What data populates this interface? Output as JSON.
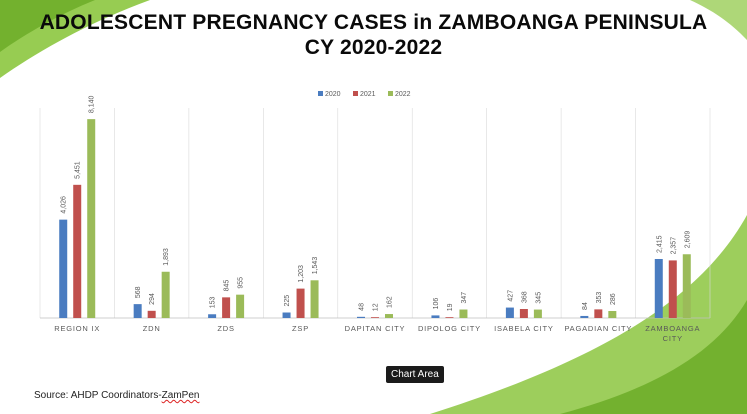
{
  "header": {
    "title_line1": "ADOLESCENT PREGNANCY CASES in ZAMBOANGA PENINSULA",
    "title_line2": "CY 2020-2022"
  },
  "tooltip": "Chart Area",
  "source": {
    "prefix": "Source: AHDP Coordinators-",
    "squiggle": "ZamPen"
  },
  "colors": {
    "series_2020": "#4a7cc0",
    "series_2021": "#c0504d",
    "series_2022": "#9bbb59",
    "grid": "#d9d9d9",
    "background_swoosh": "#8cc63f"
  },
  "chart_data": {
    "type": "bar",
    "title": "ADOLESCENT PREGNANCY CASES in ZAMBOANGA PENINSULA CY 2020-2022",
    "legend_position": "top",
    "ylim": [
      0,
      8800
    ],
    "categories": [
      "REGION IX",
      "ZDN",
      "ZDS",
      "ZSP",
      "DAPITAN CITY",
      "DIPOLOG CITY",
      "ISABELA CITY",
      "PAGADIAN CITY",
      "ZAMBOANGA CITY"
    ],
    "series": [
      {
        "name": "2020",
        "values": [
          4026,
          568,
          153,
          225,
          48,
          106,
          427,
          84,
          2415
        ],
        "labels": [
          "4,026",
          "568",
          "153",
          "225",
          "48",
          "106",
          "427",
          "84",
          "2,415"
        ]
      },
      {
        "name": "2021",
        "values": [
          5451,
          294,
          845,
          1203,
          12,
          19,
          368,
          353,
          2357
        ],
        "labels": [
          "5,451",
          "294",
          "845",
          "1,203",
          "12",
          "19",
          "368",
          "353",
          "2,357"
        ]
      },
      {
        "name": "2022",
        "values": [
          8140,
          1893,
          955,
          1543,
          162,
          347,
          345,
          286,
          2609
        ],
        "labels": [
          "8,140",
          "1,893",
          "955",
          "1,543",
          "162",
          "347",
          "345",
          "286",
          "2,609"
        ]
      }
    ]
  }
}
